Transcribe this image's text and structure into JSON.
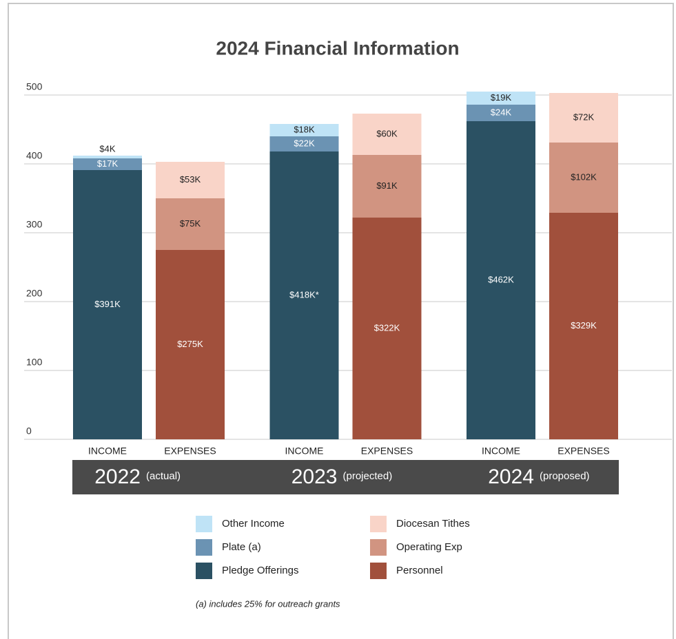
{
  "chart_data": {
    "type": "stacked_bar",
    "title": "2024 Financial Information",
    "categories": [
      "INCOME",
      "EXPENSES",
      "INCOME",
      "EXPENSES",
      "INCOME",
      "EXPENSES"
    ],
    "groups": [
      {
        "label": "2022",
        "note": "(actual)"
      },
      {
        "label": "2023",
        "note": "(projected)"
      },
      {
        "label": "2024",
        "note": "(proposed)"
      }
    ],
    "series": [
      {
        "name": "Other Income",
        "color": "#bfe3f6",
        "label_color": "#222222",
        "values": [
          4,
          null,
          18,
          null,
          19,
          null
        ],
        "value_labels": [
          "$4K",
          null,
          "$18K",
          null,
          "$19K",
          null
        ]
      },
      {
        "name": "Plate (a)",
        "color": "#6b93b3",
        "label_color": "#ffffff",
        "values": [
          17,
          null,
          22,
          null,
          24,
          null
        ],
        "value_labels": [
          "$17K",
          null,
          "$22K",
          null,
          "$24K",
          null
        ]
      },
      {
        "name": "Pledge Offerings",
        "color": "#2b5163",
        "label_color": "#ffffff",
        "values": [
          391,
          null,
          418,
          null,
          462,
          null
        ],
        "value_labels": [
          "$391K",
          null,
          "$418K*",
          null,
          "$462K",
          null
        ]
      },
      {
        "name": "Diocesan Tithes",
        "color": "#f9d4c8",
        "label_color": "#222222",
        "values": [
          null,
          53,
          null,
          60,
          null,
          72
        ],
        "value_labels": [
          null,
          "$53K",
          null,
          "$60K",
          null,
          "$72K"
        ]
      },
      {
        "name": "Operating Exp",
        "color": "#d19481",
        "label_color": "#222222",
        "values": [
          null,
          75,
          null,
          91,
          null,
          102
        ],
        "value_labels": [
          null,
          "$75K",
          null,
          "$91K",
          null,
          "$102K"
        ]
      },
      {
        "name": "Personnel",
        "color": "#a1503c",
        "label_color": "#ffffff",
        "values": [
          null,
          275,
          null,
          322,
          null,
          329
        ],
        "value_labels": [
          null,
          "$275K",
          null,
          "$322K",
          null,
          "$329K"
        ]
      }
    ],
    "ylim": [
      0,
      500
    ],
    "yticks": [
      0,
      100,
      200,
      300,
      400,
      500
    ],
    "grid": true,
    "footnote": "(a) includes 25% for outreach grants"
  }
}
